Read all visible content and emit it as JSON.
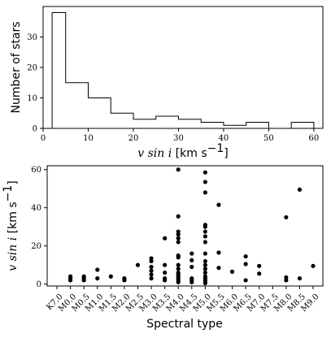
{
  "chart_data": [
    {
      "type": "histogram",
      "xlabel_math": "v sin i",
      "xlabel_unit": " [km s",
      "xlabel_unit_exp": "−1",
      "xlabel_unit_end": "]",
      "ylabel": "Number of stars",
      "xlim": [
        0,
        62
      ],
      "ylim": [
        0,
        40
      ],
      "xticks": [
        0,
        10,
        20,
        30,
        40,
        50,
        60
      ],
      "yticks": [
        0,
        10,
        20,
        30
      ],
      "bin_edges": [
        2,
        5,
        10,
        15,
        20,
        25,
        30,
        35,
        40,
        45,
        50,
        55,
        60
      ],
      "counts": [
        38,
        15,
        10,
        5,
        3,
        4,
        3,
        2,
        1,
        2,
        0,
        2
      ],
      "grid": false
    },
    {
      "type": "scatter",
      "xlabel": "Spectral type",
      "ylabel_math": "v sin i",
      "ylabel_unit": " [km s",
      "ylabel_unit_exp": "−1",
      "ylabel_unit_end": "]",
      "categories": [
        "K7.0",
        "M0.0",
        "M0.5",
        "M1.0",
        "M1.5",
        "M2.0",
        "M2.5",
        "M3.0",
        "M3.5",
        "M4.0",
        "M4.5",
        "M5.0",
        "M5.5",
        "M6.0",
        "M6.5",
        "M7.0",
        "M7.5",
        "M8.0",
        "M8.5",
        "M9.0"
      ],
      "ylim": [
        -1,
        62
      ],
      "yticks": [
        0,
        20,
        40,
        60
      ],
      "grid": false,
      "points": [
        {
          "x": "M0.0",
          "y": 2
        },
        {
          "x": "M0.0",
          "y": 3
        },
        {
          "x": "M0.0",
          "y": 4
        },
        {
          "x": "M0.5",
          "y": 2
        },
        {
          "x": "M0.5",
          "y": 3
        },
        {
          "x": "M0.5",
          "y": 4
        },
        {
          "x": "M1.0",
          "y": 3
        },
        {
          "x": "M1.0",
          "y": 7.5
        },
        {
          "x": "M1.5",
          "y": 4
        },
        {
          "x": "M2.0",
          "y": 2
        },
        {
          "x": "M2.0",
          "y": 3
        },
        {
          "x": "M2.5",
          "y": 10
        },
        {
          "x": "M3.0",
          "y": 3
        },
        {
          "x": "M3.0",
          "y": 5
        },
        {
          "x": "M3.0",
          "y": 7
        },
        {
          "x": "M3.0",
          "y": 9
        },
        {
          "x": "M3.0",
          "y": 12
        },
        {
          "x": "M3.0",
          "y": 13.5
        },
        {
          "x": "M3.5",
          "y": 2
        },
        {
          "x": "M3.5",
          "y": 3
        },
        {
          "x": "M3.5",
          "y": 6
        },
        {
          "x": "M3.5",
          "y": 10
        },
        {
          "x": "M3.5",
          "y": 24
        },
        {
          "x": "M4.0",
          "y": 1
        },
        {
          "x": "M4.0",
          "y": 2
        },
        {
          "x": "M4.0",
          "y": 3
        },
        {
          "x": "M4.0",
          "y": 4
        },
        {
          "x": "M4.0",
          "y": 5
        },
        {
          "x": "M4.0",
          "y": 6
        },
        {
          "x": "M4.0",
          "y": 8
        },
        {
          "x": "M4.0",
          "y": 10
        },
        {
          "x": "M4.0",
          "y": 14
        },
        {
          "x": "M4.0",
          "y": 15
        },
        {
          "x": "M4.0",
          "y": 22
        },
        {
          "x": "M4.0",
          "y": 24
        },
        {
          "x": "M4.0",
          "y": 26
        },
        {
          "x": "M4.0",
          "y": 27.5
        },
        {
          "x": "M4.0",
          "y": 35.5
        },
        {
          "x": "M4.0",
          "y": 60
        },
        {
          "x": "M4.5",
          "y": 1
        },
        {
          "x": "M4.5",
          "y": 2
        },
        {
          "x": "M4.5",
          "y": 3
        },
        {
          "x": "M4.5",
          "y": 9
        },
        {
          "x": "M4.5",
          "y": 12.5
        },
        {
          "x": "M4.5",
          "y": 16
        },
        {
          "x": "M5.0",
          "y": 0.5
        },
        {
          "x": "M5.0",
          "y": 1
        },
        {
          "x": "M5.0",
          "y": 2
        },
        {
          "x": "M5.0",
          "y": 3
        },
        {
          "x": "M5.0",
          "y": 4
        },
        {
          "x": "M5.0",
          "y": 6
        },
        {
          "x": "M5.0",
          "y": 8
        },
        {
          "x": "M5.0",
          "y": 10
        },
        {
          "x": "M5.0",
          "y": 12
        },
        {
          "x": "M5.0",
          "y": 16
        },
        {
          "x": "M5.0",
          "y": 22
        },
        {
          "x": "M5.0",
          "y": 25
        },
        {
          "x": "M5.0",
          "y": 27.5
        },
        {
          "x": "M5.0",
          "y": 30
        },
        {
          "x": "M5.0",
          "y": 31
        },
        {
          "x": "M5.0",
          "y": 48
        },
        {
          "x": "M5.0",
          "y": 53.5
        },
        {
          "x": "M5.0",
          "y": 58.5
        },
        {
          "x": "M5.5",
          "y": 8.5
        },
        {
          "x": "M5.5",
          "y": 16.5
        },
        {
          "x": "M5.5",
          "y": 41.5
        },
        {
          "x": "M6.0",
          "y": 6.5
        },
        {
          "x": "M6.5",
          "y": 2
        },
        {
          "x": "M6.5",
          "y": 10.5
        },
        {
          "x": "M6.5",
          "y": 14.5
        },
        {
          "x": "M7.0",
          "y": 5.5
        },
        {
          "x": "M7.0",
          "y": 9.5
        },
        {
          "x": "M8.0",
          "y": 2
        },
        {
          "x": "M8.0",
          "y": 3.5
        },
        {
          "x": "M8.0",
          "y": 35
        },
        {
          "x": "M8.5",
          "y": 3
        },
        {
          "x": "M8.5",
          "y": 49.5
        },
        {
          "x": "M9.0",
          "y": 9.5
        }
      ]
    }
  ]
}
